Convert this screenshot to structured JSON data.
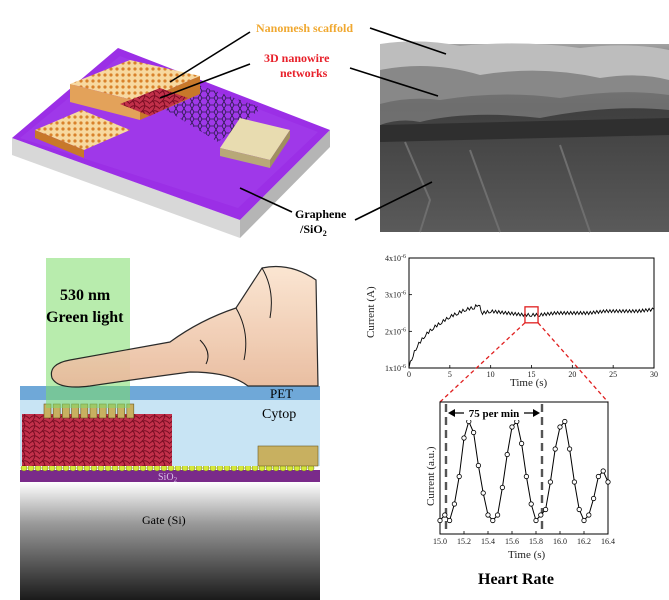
{
  "labels": {
    "nanomesh": "Nanomesh scaffold",
    "nanowire_line1": "3D nanowire",
    "nanowire_line2": "networks",
    "graphene_line1": "Graphene",
    "graphene_line2": "/SiO",
    "graphene_sub": "2",
    "light_line1": "530 nm",
    "light_line2": "Green light",
    "pet": "PET",
    "cytop": "Cytop",
    "sio2": "SiO",
    "sio2_sub": "2",
    "gate": "Gate (Si)",
    "heart_rate": "Heart Rate",
    "bpm": "75 per min"
  },
  "colors": {
    "nanomesh": "#f0a830",
    "nanowire": "#e8202a",
    "substrate": "#8a2be2",
    "green_light": "#7ddc6a",
    "pet": "#6fa8d8",
    "cytop": "#c8e4f4",
    "sio2": "#7a2a8a"
  },
  "chart_data": [
    {
      "type": "line",
      "xlabel": "Time (s)",
      "ylabel": "Current (A)",
      "xlim": [
        0,
        30
      ],
      "ylim": [
        1e-06,
        4e-06
      ],
      "xticks": [
        "0",
        "5",
        "10",
        "15",
        "20",
        "25",
        "30"
      ],
      "yticks": [
        {
          "mantissa": "1x10",
          "exp": "-6"
        },
        {
          "mantissa": "2x10",
          "exp": "-6"
        },
        {
          "mantissa": "3x10",
          "exp": "-6"
        },
        {
          "mantissa": "4x10",
          "exp": "-6"
        }
      ],
      "x": [
        0,
        0.5,
        1,
        2,
        3,
        4,
        5,
        6,
        7,
        8,
        8.5,
        9,
        10,
        12,
        14,
        15,
        16,
        18,
        20,
        22,
        24,
        26,
        28,
        30
      ],
      "y": [
        1.05e-06,
        1.35e-06,
        1.6e-06,
        1.9e-06,
        2.1e-06,
        2.25e-06,
        2.4e-06,
        2.5e-06,
        2.6e-06,
        2.65e-06,
        2.75e-06,
        2.5e-06,
        2.55e-06,
        2.5e-06,
        2.45e-06,
        2.45e-06,
        2.45e-06,
        2.5e-06,
        2.5e-06,
        2.5e-06,
        2.55e-06,
        2.55e-06,
        2.55e-06,
        2.6e-06
      ],
      "highlight_x": [
        14.2,
        15.8
      ]
    },
    {
      "type": "line",
      "xlabel": "Time (s)",
      "ylabel": "Current (a.u.)",
      "xlim": [
        15.0,
        16.4
      ],
      "xticks": [
        "15.0",
        "15.2",
        "15.4",
        "15.6",
        "15.8",
        "16.0",
        "16.2",
        "16.4"
      ],
      "x": [
        15.0,
        15.04,
        15.08,
        15.12,
        15.16,
        15.2,
        15.24,
        15.28,
        15.32,
        15.36,
        15.4,
        15.44,
        15.48,
        15.52,
        15.56,
        15.6,
        15.64,
        15.68,
        15.72,
        15.76,
        15.8,
        15.84,
        15.88,
        15.92,
        15.96,
        16.0,
        16.04,
        16.08,
        16.12,
        16.16,
        16.2,
        16.24,
        16.28,
        16.32,
        16.36,
        16.4
      ],
      "y": [
        0.05,
        0.1,
        0.05,
        0.2,
        0.45,
        0.8,
        0.95,
        0.85,
        0.55,
        0.3,
        0.1,
        0.05,
        0.1,
        0.35,
        0.65,
        0.9,
        0.95,
        0.75,
        0.45,
        0.2,
        0.05,
        0.1,
        0.15,
        0.4,
        0.7,
        0.9,
        0.95,
        0.7,
        0.4,
        0.15,
        0.05,
        0.1,
        0.25,
        0.45,
        0.5,
        0.4
      ],
      "ylim": [
        0,
        1
      ],
      "beat_markers": [
        15.05,
        15.85
      ]
    }
  ]
}
